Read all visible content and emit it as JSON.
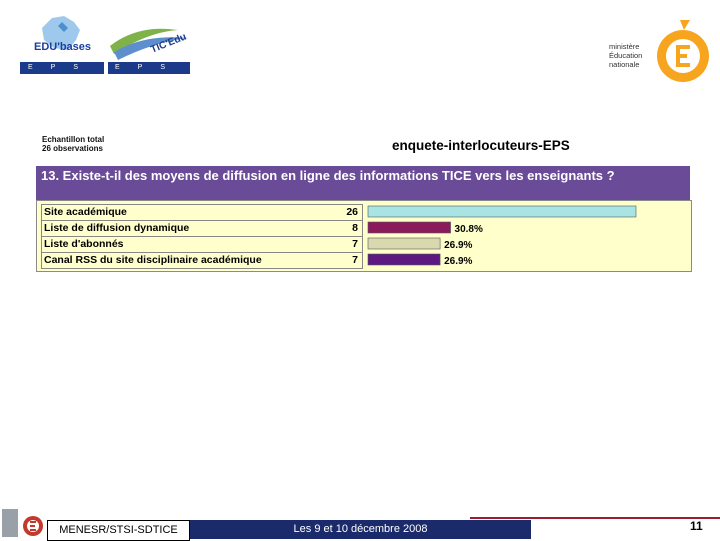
{
  "header": {
    "edu_logo_text": "EDU'bases",
    "edu_logo_bar": "EPS",
    "tic_logo_text": "TIC'Edu",
    "tic_logo_bar": "EPS",
    "ministry_lines": [
      "ministère",
      "Éducation",
      "nationale"
    ]
  },
  "chart_data": {
    "type": "bar",
    "orientation": "horizontal",
    "sample_lines": [
      "Echantillon total",
      "26 observations"
    ],
    "survey_title": "enquete-interlocuteurs-EPS",
    "title": "13. Existe-t-il des moyens de diffusion en ligne des informations TICE vers les enseignants ?",
    "categories": [
      "Site académique",
      "Liste de diffusion dynamique",
      "Liste d'abonnés",
      "Canal RSS du site disciplinaire académique"
    ],
    "counts": [
      "26",
      "8",
      "7",
      "7"
    ],
    "values": [
      100,
      30.8,
      26.9,
      26.9
    ],
    "value_labels": [
      "",
      "30.8%",
      "26.9%",
      "26.9%"
    ],
    "xlim": [
      0,
      100
    ],
    "bar_colors": [
      "#a8e4e4",
      "#8b1a5c",
      "#d9d9b0",
      "#5c1a80"
    ],
    "colors": {
      "question_bg": "#6a4b97",
      "table_bg": "#ffffcc"
    }
  },
  "footer": {
    "org": "MENESR/STSI-SDTICE",
    "date": "Les 9 et 10 décembre 2008",
    "page": "11"
  }
}
